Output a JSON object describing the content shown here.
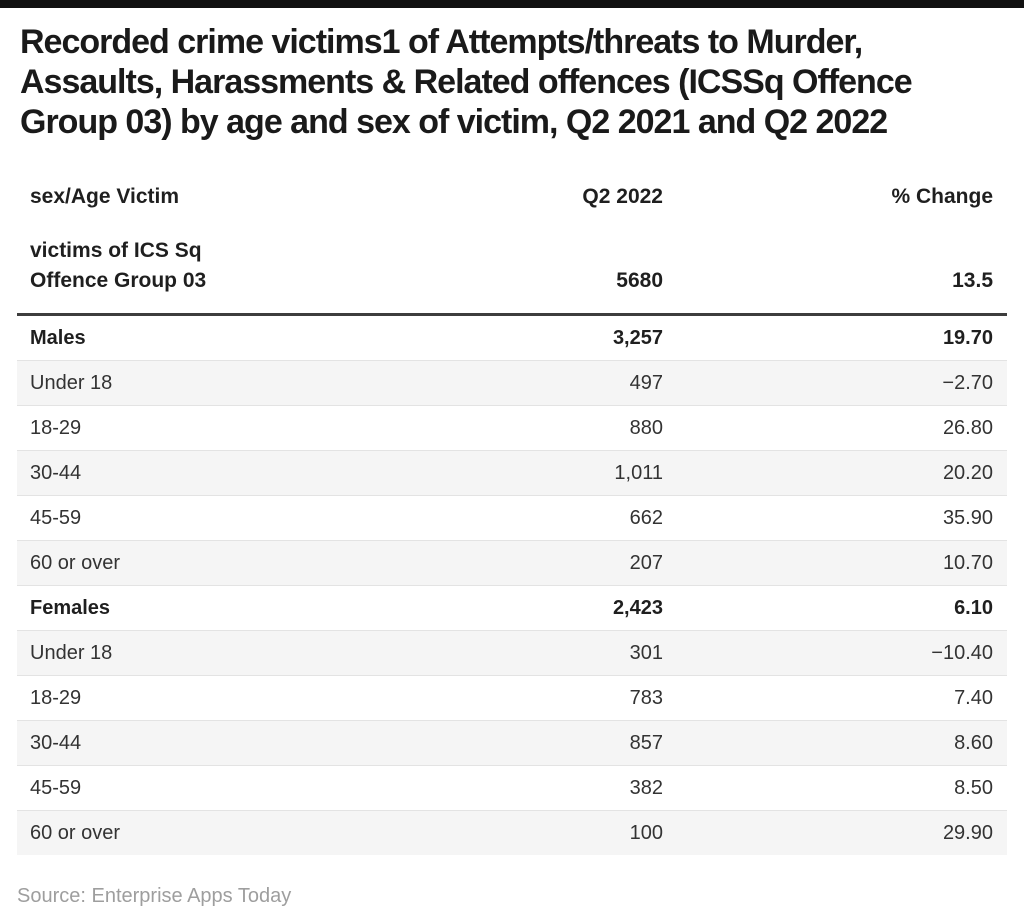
{
  "page": {
    "title_lines": [
      "Recorded crime victims1 of Attempts/threats to Murder,",
      "Assaults, Harassments & Related offences (ICSSq Offence",
      "Group 03) by age and sex of victim, Q2 2021 and Q2 2022"
    ],
    "source_note": "Source: Enterprise Apps Today"
  },
  "table": {
    "columns": {
      "label": "sex/Age Victim",
      "q2_2022": "Q2 2022",
      "pct_change": "% Change"
    },
    "subheader": {
      "label_line1": "victims of ICS Sq",
      "label_line2": "Offence Group 03",
      "q2_2022": "5680",
      "pct_change": "13.5"
    },
    "rows": [
      {
        "label": "Males",
        "q2_2022": "3,257",
        "pct_change": "19.70"
      },
      {
        "label": "Under 18",
        "q2_2022": "497",
        "pct_change": "−2.70"
      },
      {
        "label": "18-29",
        "q2_2022": "880",
        "pct_change": "26.80"
      },
      {
        "label": "30-44",
        "q2_2022": "1,011",
        "pct_change": "20.20"
      },
      {
        "label": "45-59",
        "q2_2022": "662",
        "pct_change": "35.90"
      },
      {
        "label": "60 or over",
        "q2_2022": "207",
        "pct_change": "10.70"
      },
      {
        "label": "Females",
        "q2_2022": "2,423",
        "pct_change": "6.10"
      },
      {
        "label": "Under 18",
        "q2_2022": "301",
        "pct_change": "−10.40"
      },
      {
        "label": "18-29",
        "q2_2022": "783",
        "pct_change": "7.40"
      },
      {
        "label": "30-44",
        "q2_2022": "857",
        "pct_change": "8.60"
      },
      {
        "label": "45-59",
        "q2_2022": "382",
        "pct_change": "8.50"
      },
      {
        "label": "60 or over",
        "q2_2022": "100",
        "pct_change": "29.90"
      }
    ]
  },
  "colors": {
    "top_bar": "#111111",
    "alt_row_bg": "#f5f5f5",
    "row_border": "#e3e3e3",
    "header_rule": "#3d3d3d",
    "text_primary": "#1f1f1f",
    "source_text": "#9e9e9e"
  },
  "chart_data": {
    "type": "table",
    "title": "Recorded crime victims1 of Attempts/threats to Murder, Assaults, Harassments & Related offences (ICSSq Offence Group 03) by age and sex of victim, Q2 2021 and Q2 2022",
    "columns": [
      "sex/Age Victim",
      "Q2 2022",
      "% Change"
    ],
    "rows": [
      [
        "victims of ICS Sq Offence Group 03",
        5680,
        13.5
      ],
      [
        "Males",
        3257,
        19.7
      ],
      [
        "Under 18",
        497,
        -2.7
      ],
      [
        "18-29",
        880,
        26.8
      ],
      [
        "30-44",
        1011,
        20.2
      ],
      [
        "45-59",
        662,
        35.9
      ],
      [
        "60 or over",
        207,
        10.7
      ],
      [
        "Females",
        2423,
        6.1
      ],
      [
        "Under 18",
        301,
        -10.4
      ],
      [
        "18-29",
        783,
        7.4
      ],
      [
        "30-44",
        857,
        8.6
      ],
      [
        "45-59",
        382,
        8.5
      ],
      [
        "60 or over",
        100,
        29.9
      ]
    ],
    "group_rows": [
      "Males",
      "Females"
    ],
    "source": "Enterprise Apps Today",
    "layout": {
      "alternating_row_shading": true,
      "value_columns_right_aligned": true
    }
  }
}
